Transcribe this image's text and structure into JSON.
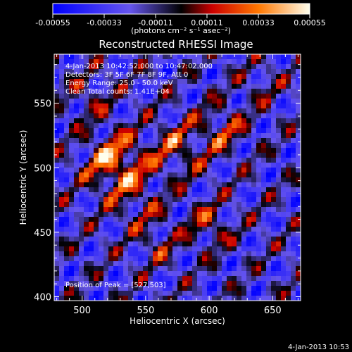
{
  "chart_data": {
    "type": "heatmap",
    "title": "Reconstructed RHESSI Image",
    "xlabel": "Heliocentric X (arcsec)",
    "ylabel": "Heliocentric Y (arcsec)",
    "xlim": [
      478,
      672
    ],
    "ylim": [
      397,
      588
    ],
    "x_ticks": [
      500,
      550,
      600,
      650
    ],
    "y_ticks": [
      400,
      450,
      500,
      550
    ],
    "colorbar": {
      "min": -0.00055,
      "max": 0.00055,
      "ticks": [
        "-0.00055",
        "-0.00033",
        "-0.00011",
        "0.00011",
        "0.00033",
        "0.00055"
      ],
      "unit_text": "(photons cm⁻² s⁻¹ asec⁻²)"
    },
    "annotations": [
      "4-Jan-2013 10:42:52.000 to 10:47:02.000",
      "Detectors: 3F 5F 6F 7F 8F 9F, Att 0",
      "Energy Range: 25.0 - 50.0 keV",
      "Clean     Total counts: 1.41E+04"
    ],
    "peak_label": "Position of Peak = [527,503]",
    "peak_position": [
      527,
      503
    ]
  },
  "timestamp": "4-Jan-2013 10:53"
}
